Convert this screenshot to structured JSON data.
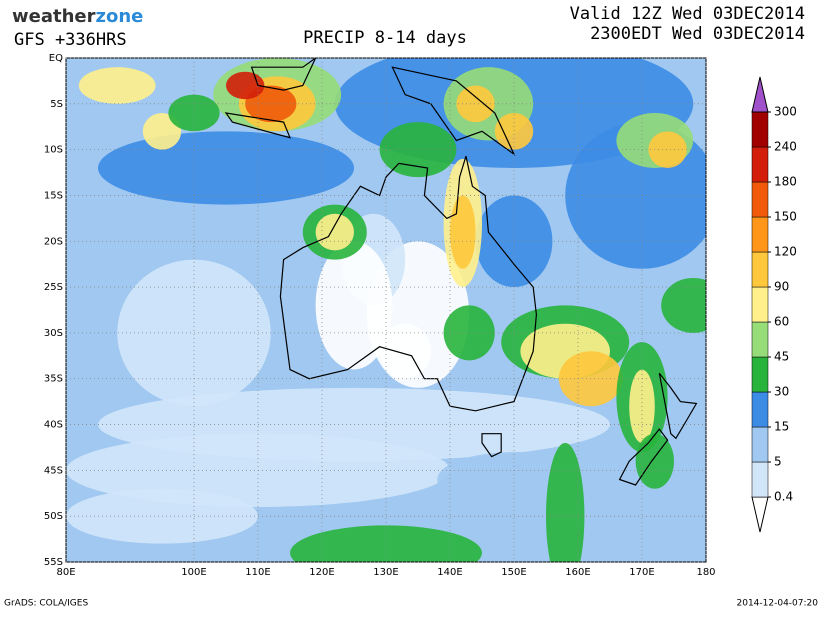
{
  "header": {
    "logo_weather": "weather",
    "logo_zone": "zone",
    "model": "GFS +336HRS",
    "title": "PRECIP 8-14 days",
    "valid": "Valid 12Z Wed 03DEC2014",
    "local": "2300EDT Wed 03DEC2014"
  },
  "map": {
    "lon_ticks": [
      {
        "value": 80,
        "label": "80E"
      },
      {
        "value": 100,
        "label": "100E"
      },
      {
        "value": 110,
        "label": "110E"
      },
      {
        "value": 120,
        "label": "120E"
      },
      {
        "value": 130,
        "label": "130E"
      },
      {
        "value": 140,
        "label": "140E"
      },
      {
        "value": 150,
        "label": "150E"
      },
      {
        "value": 160,
        "label": "160E"
      },
      {
        "value": 170,
        "label": "170E"
      },
      180
    ],
    "lat_ticks": [
      {
        "value": 0,
        "label": "EQ"
      },
      {
        "value": -5,
        "label": "5S"
      },
      {
        "value": -10,
        "label": "10S"
      },
      {
        "value": -15,
        "label": "15S"
      },
      {
        "value": -20,
        "label": "20S"
      },
      {
        "value": -25,
        "label": "25S"
      },
      {
        "value": -30,
        "label": "30S"
      },
      {
        "value": -35,
        "label": "35S"
      },
      {
        "value": -40,
        "label": "40S"
      },
      {
        "value": -45,
        "label": "45S"
      },
      {
        "value": -50,
        "label": "50S"
      },
      {
        "value": -55,
        "label": "55S"
      }
    ]
  },
  "colorbar": {
    "levels": [
      0.4,
      5,
      15,
      30,
      45,
      60,
      90,
      120,
      150,
      180,
      240,
      300
    ],
    "colors": [
      "#ffffff",
      "#d2e6fa",
      "#a0c8f0",
      "#3c8ce6",
      "#28b43c",
      "#96dc78",
      "#fff08c",
      "#ffc83c",
      "#ff9619",
      "#f05a0a",
      "#d21e0a",
      "#a00000",
      "#a050c8"
    ]
  },
  "footer": {
    "credit": "GrADS: COLA/IGES",
    "timestamp": "2014-12-04-07:20"
  }
}
